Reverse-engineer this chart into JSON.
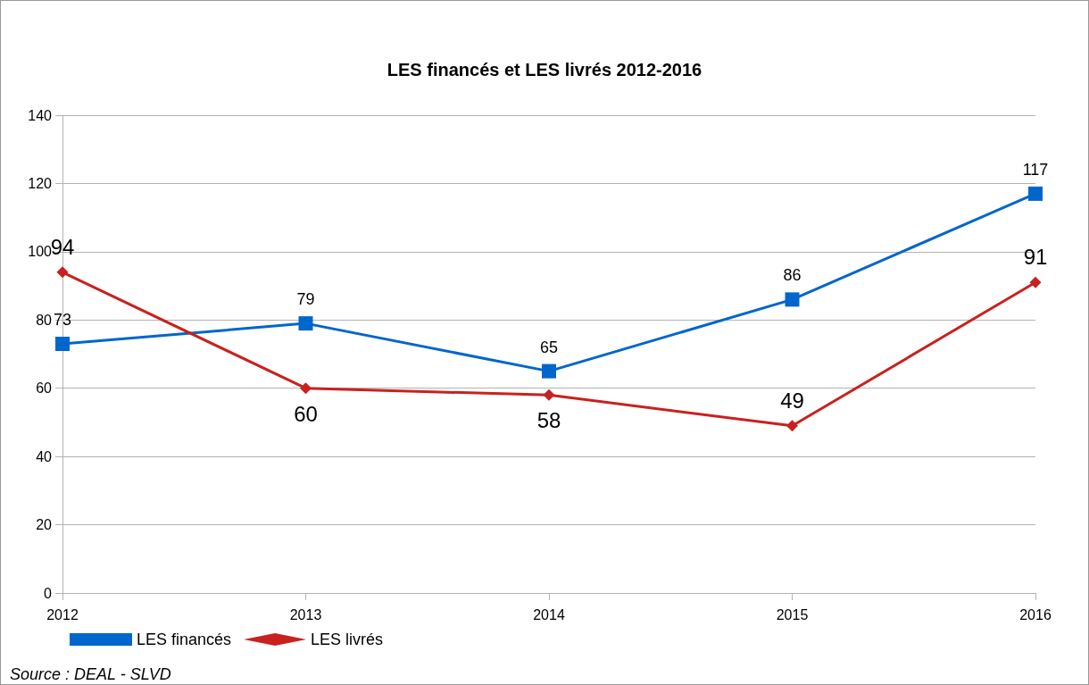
{
  "chart_data": {
    "type": "line",
    "title": "LES financés et LES livrés 2012-2016",
    "categories": [
      "2012",
      "2013",
      "2014",
      "2015",
      "2016"
    ],
    "series": [
      {
        "name": "LES financés",
        "color": "#0066cc",
        "marker": "square",
        "values": [
          73,
          79,
          65,
          86,
          117
        ]
      },
      {
        "name": "LES livrés",
        "color": "#c9211e",
        "marker": "diamond",
        "values": [
          94,
          60,
          58,
          49,
          91
        ]
      }
    ],
    "ylim": [
      0,
      140
    ],
    "yticks": [
      0,
      20,
      40,
      60,
      80,
      100,
      120,
      140
    ],
    "grid": "y",
    "legend": "bottom left",
    "data_labels": true,
    "annotations": [
      "Source : DEAL - SLVD"
    ]
  }
}
